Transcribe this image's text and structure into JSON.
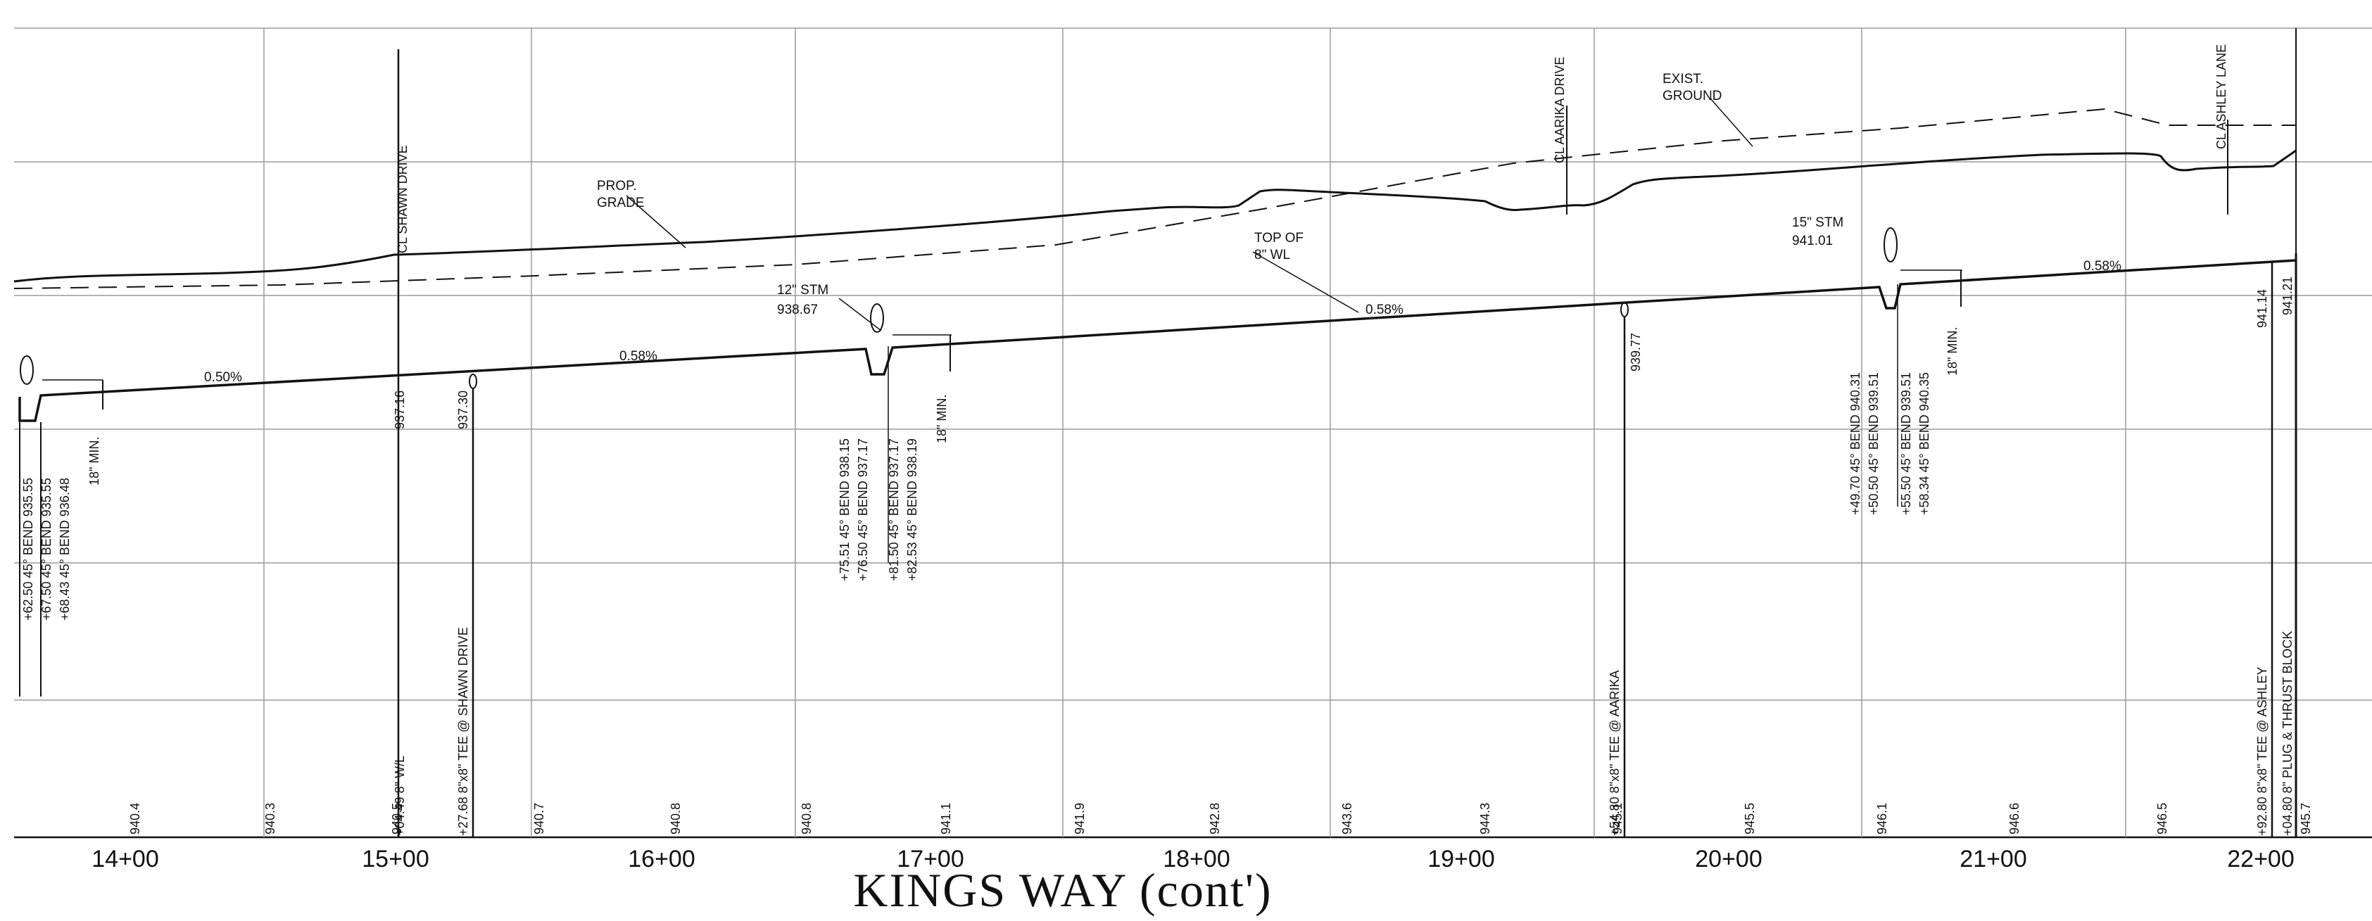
{
  "title": "KINGS WAY (cont')",
  "stations": [
    "14+00",
    "15+00",
    "16+00",
    "17+00",
    "18+00",
    "19+00",
    "20+00",
    "21+00",
    "22+00"
  ],
  "ground_elevations": [
    "940.4",
    "940.3",
    "940.5",
    "940.7",
    "940.8",
    "940.8",
    "941.1",
    "941.9",
    "942.8",
    "943.6",
    "944.3",
    "945.1",
    "945.5",
    "946.1",
    "946.6",
    "946.5",
    "945.7"
  ],
  "labels": {
    "prop_grade_1": "PROP.",
    "prop_grade_2": "GRADE",
    "exist_ground_1": "EXIST.",
    "exist_ground_2": "GROUND",
    "top_wl_1": "TOP OF",
    "top_wl_2": "8\" WL",
    "stm12_1": "12\" STM",
    "stm12_2": "938.67",
    "stm15_1": "15\" STM",
    "stm15_2": "941.01"
  },
  "slopes": {
    "s1": "0.50%",
    "s2": "0.58%",
    "s3": "0.58%",
    "s4": "0.58%"
  },
  "street_centerlines": {
    "shawn": "CL SHAWN DRIVE",
    "aarika": "CL AARIKA DRIVE",
    "ashley": "CL ASHLEY LANE"
  },
  "notes": {
    "n_left_1": "+68.43  45° BEND  936.48",
    "n_left_2": "+67.50  45° BEND  935.55",
    "n_left_3": "+62.50  45° BEND  935.55",
    "min_left": "18\" MIN.",
    "v937_16": "937.16",
    "w_l": "+04.49  8\" W/L",
    "v937_30": "937.30",
    "tee_shawn": "+27.68  8\"x8\" TEE @ SHAWN DRIVE",
    "b1": "+75.51  45° BEND  938.15",
    "b2": "+76.50  45° BEND  937.17",
    "b3": "+81.50  45° BEND  937.17",
    "b4": "+82.53  45° BEND  938.19",
    "min_mid": "18\" MIN.",
    "v939_77": "939.77",
    "tee_aarika": "+54.80  8\"x8\" TEE @ AARIKA",
    "c1": "+49.70  45° BEND  940.31",
    "c2": "+50.50  45° BEND  939.51",
    "c3": "+55.50  45° BEND  939.51",
    "c4": "+58.34  45° BEND  940.35",
    "min_right": "18\" MIN.",
    "v941_14": "941.14",
    "v941_21": "941.21",
    "tee_ashley": "+92.80  8\"x8\" TEE @ ASHLEY",
    "plug": "+04.80  8\" PLUG & THRUST BLOCK"
  }
}
